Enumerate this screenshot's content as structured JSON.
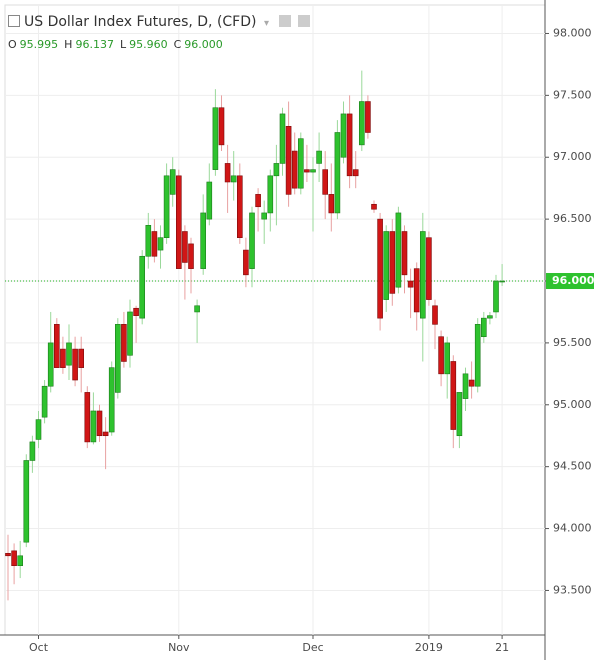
{
  "chart_data": {
    "type": "candlestick",
    "title": "US Dollar Index Futures, D, (CFD)",
    "ohlc_labels": [
      {
        "key": "O",
        "value": "95.995"
      },
      {
        "key": "H",
        "value": "96.137"
      },
      {
        "key": "L",
        "value": "95.960"
      },
      {
        "key": "C",
        "value": "96.000"
      }
    ],
    "up_color": "#2ec22e",
    "down_color": "#d01616",
    "categories": [
      null,
      null,
      null,
      null,
      null,
      "Oct",
      null,
      null,
      null,
      null,
      null,
      null,
      null,
      null,
      null,
      null,
      null,
      null,
      null,
      null,
      null,
      null,
      null,
      null,
      null,
      null,
      null,
      null,
      "Nov",
      null,
      null,
      null,
      null,
      null,
      null,
      null,
      null,
      null,
      null,
      null,
      null,
      null,
      null,
      null,
      null,
      null,
      null,
      null,
      null,
      null,
      "Dec",
      null,
      null,
      null,
      null,
      null,
      null,
      null,
      null,
      null,
      null,
      null,
      null,
      null,
      null,
      null,
      null,
      null,
      null,
      "2019",
      null,
      null,
      null,
      null,
      null,
      null,
      null,
      null,
      null,
      null,
      null,
      "21"
    ],
    "open": [
      93.8,
      93.82,
      93.7,
      93.89,
      94.55,
      94.72,
      94.9,
      95.15,
      95.65,
      95.45,
      95.32,
      95.45,
      95.45,
      95.1,
      94.7,
      94.95,
      94.78,
      94.78,
      95.1,
      95.65,
      95.4,
      95.78,
      95.7,
      96.2,
      96.4,
      96.25,
      96.35,
      96.7,
      96.85,
      96.4,
      96.3,
      95.75,
      96.1,
      96.5,
      96.9,
      97.4,
      96.95,
      96.8,
      96.85,
      96.25,
      96.1,
      96.7,
      96.5,
      96.55,
      96.85,
      96.95,
      97.25,
      97.05,
      96.75,
      96.9,
      96.88,
      96.95,
      96.9,
      96.7,
      96.55,
      97.0,
      97.35,
      96.9,
      97.1,
      97.45,
      96.62,
      96.5,
      95.85,
      96.4,
      95.95,
      96.4,
      96.0,
      96.1,
      95.7,
      96.35,
      95.8,
      95.55,
      95.25,
      95.35,
      94.75,
      95.05,
      95.2,
      95.15,
      95.55,
      95.7,
      95.75,
      95.995
    ],
    "high": [
      93.95,
      93.88,
      93.9,
      94.6,
      94.75,
      94.95,
      95.2,
      95.75,
      95.7,
      95.55,
      95.65,
      95.55,
      95.55,
      95.15,
      95.1,
      95.0,
      94.9,
      95.35,
      95.7,
      95.75,
      95.85,
      95.8,
      96.25,
      96.55,
      96.5,
      96.45,
      96.95,
      97.0,
      96.9,
      96.45,
      96.35,
      95.85,
      96.7,
      96.95,
      97.55,
      97.5,
      97.1,
      97.05,
      96.95,
      96.35,
      96.6,
      96.75,
      96.65,
      96.9,
      97.1,
      97.4,
      97.45,
      97.2,
      97.2,
      97.1,
      97.0,
      97.2,
      97.05,
      96.95,
      97.3,
      97.45,
      97.5,
      97.05,
      97.7,
      97.5,
      96.65,
      96.55,
      96.45,
      96.5,
      96.6,
      96.45,
      96.1,
      96.15,
      96.55,
      96.4,
      95.85,
      95.6,
      95.55,
      95.4,
      95.1,
      95.3,
      95.35,
      95.7,
      95.75,
      95.75,
      96.05,
      96.137
    ],
    "low": [
      93.42,
      93.55,
      93.6,
      93.85,
      94.45,
      94.65,
      94.85,
      95.1,
      95.3,
      95.25,
      95.2,
      95.15,
      95.1,
      94.65,
      94.68,
      94.7,
      94.48,
      94.75,
      95.05,
      95.3,
      95.3,
      95.5,
      95.65,
      96.1,
      96.15,
      96.1,
      96.3,
      96.6,
      96.1,
      95.85,
      95.9,
      95.5,
      96.05,
      96.45,
      96.85,
      97.05,
      96.55,
      96.65,
      96.3,
      95.95,
      95.95,
      96.4,
      96.3,
      96.4,
      96.45,
      96.85,
      96.6,
      96.7,
      96.7,
      96.8,
      96.4,
      96.8,
      96.5,
      96.4,
      96.5,
      96.95,
      96.75,
      96.75,
      97.05,
      97.15,
      96.55,
      95.6,
      95.75,
      95.8,
      95.9,
      95.9,
      95.7,
      95.6,
      95.35,
      95.8,
      95.45,
      95.15,
      95.05,
      94.65,
      94.65,
      94.95,
      95.05,
      95.1,
      95.5,
      95.65,
      95.7,
      95.96
    ],
    "close": [
      93.78,
      93.7,
      93.78,
      94.55,
      94.7,
      94.88,
      95.15,
      95.5,
      95.3,
      95.3,
      95.5,
      95.2,
      95.3,
      94.7,
      94.95,
      94.75,
      94.75,
      95.3,
      95.65,
      95.35,
      95.75,
      95.72,
      96.2,
      96.45,
      96.2,
      96.35,
      96.85,
      96.9,
      96.1,
      96.15,
      96.1,
      95.8,
      96.55,
      96.8,
      97.4,
      97.1,
      96.8,
      96.85,
      96.35,
      96.05,
      96.55,
      96.6,
      96.55,
      96.85,
      96.95,
      97.35,
      96.7,
      96.75,
      97.15,
      96.88,
      96.9,
      97.05,
      96.7,
      96.55,
      97.2,
      97.35,
      96.85,
      96.85,
      97.45,
      97.2,
      96.58,
      95.7,
      96.4,
      95.9,
      96.55,
      96.05,
      95.95,
      95.75,
      96.4,
      95.85,
      95.65,
      95.25,
      95.5,
      94.8,
      95.1,
      95.25,
      95.15,
      95.65,
      95.7,
      95.72,
      96.0,
      96.0
    ],
    "ylim": [
      93.14,
      98.23
    ],
    "yticks": [
      {
        "value": 93.5,
        "label": "93.500"
      },
      {
        "value": 94,
        "label": "94.000"
      },
      {
        "value": 94.5,
        "label": "94.500"
      },
      {
        "value": 95,
        "label": "95.000"
      },
      {
        "value": 95.5,
        "label": "95.500"
      },
      {
        "value": 96,
        "label": "96.000"
      },
      {
        "value": 96.5,
        "label": "96.500"
      },
      {
        "value": 97,
        "label": "97.000"
      },
      {
        "value": 97.5,
        "label": "97.500"
      },
      {
        "value": 98,
        "label": "98.000"
      }
    ],
    "last_price": {
      "value": 96,
      "label": "96.000"
    },
    "grid": true
  }
}
